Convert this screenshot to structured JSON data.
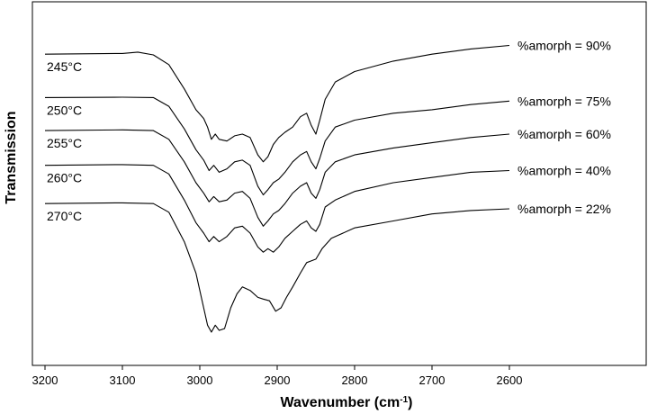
{
  "chart_data": {
    "type": "line",
    "xlabel": "Wavenumber (cm",
    "xlabel_sup": "-1",
    "xlabel_close": ")",
    "ylabel": "Transmission",
    "x_ticks": [
      3200,
      3100,
      3000,
      2900,
      2800,
      2700,
      2600
    ],
    "xlim": [
      3200,
      2600
    ],
    "x_reversed": true,
    "ylim": [
      0,
      1
    ],
    "grid": false,
    "series": [
      {
        "temp_label": "245°C",
        "name": "%amorph = 90%",
        "values": [
          [
            3200,
            0.87
          ],
          [
            3100,
            0.872
          ],
          [
            3080,
            0.876
          ],
          [
            3060,
            0.868
          ],
          [
            3040,
            0.84
          ],
          [
            3020,
            0.77
          ],
          [
            3005,
            0.71
          ],
          [
            2995,
            0.685
          ],
          [
            2990,
            0.66
          ],
          [
            2985,
            0.625
          ],
          [
            2980,
            0.64
          ],
          [
            2975,
            0.625
          ],
          [
            2965,
            0.62
          ],
          [
            2955,
            0.635
          ],
          [
            2945,
            0.64
          ],
          [
            2935,
            0.63
          ],
          [
            2925,
            0.58
          ],
          [
            2918,
            0.56
          ],
          [
            2912,
            0.575
          ],
          [
            2905,
            0.61
          ],
          [
            2898,
            0.63
          ],
          [
            2890,
            0.645
          ],
          [
            2880,
            0.66
          ],
          [
            2870,
            0.69
          ],
          [
            2862,
            0.7
          ],
          [
            2856,
            0.665
          ],
          [
            2850,
            0.64
          ],
          [
            2845,
            0.68
          ],
          [
            2838,
            0.74
          ],
          [
            2825,
            0.79
          ],
          [
            2800,
            0.82
          ],
          [
            2750,
            0.85
          ],
          [
            2700,
            0.87
          ],
          [
            2650,
            0.885
          ],
          [
            2600,
            0.895
          ]
        ]
      },
      {
        "temp_label": "250°C",
        "name": "%amorph = 75%",
        "values": [
          [
            3200,
            0.745
          ],
          [
            3100,
            0.746
          ],
          [
            3060,
            0.745
          ],
          [
            3040,
            0.72
          ],
          [
            3020,
            0.655
          ],
          [
            3005,
            0.595
          ],
          [
            2995,
            0.565
          ],
          [
            2988,
            0.535
          ],
          [
            2982,
            0.55
          ],
          [
            2975,
            0.53
          ],
          [
            2965,
            0.54
          ],
          [
            2955,
            0.56
          ],
          [
            2945,
            0.565
          ],
          [
            2935,
            0.55
          ],
          [
            2925,
            0.49
          ],
          [
            2918,
            0.465
          ],
          [
            2912,
            0.48
          ],
          [
            2905,
            0.5
          ],
          [
            2898,
            0.51
          ],
          [
            2890,
            0.53
          ],
          [
            2880,
            0.56
          ],
          [
            2870,
            0.58
          ],
          [
            2862,
            0.59
          ],
          [
            2856,
            0.56
          ],
          [
            2850,
            0.54
          ],
          [
            2845,
            0.57
          ],
          [
            2838,
            0.62
          ],
          [
            2825,
            0.66
          ],
          [
            2800,
            0.68
          ],
          [
            2750,
            0.7
          ],
          [
            2700,
            0.71
          ],
          [
            2650,
            0.725
          ],
          [
            2600,
            0.735
          ]
        ]
      },
      {
        "temp_label": "255°C",
        "name": "%amorph = 60%",
        "values": [
          [
            3200,
            0.65
          ],
          [
            3100,
            0.652
          ],
          [
            3060,
            0.65
          ],
          [
            3040,
            0.625
          ],
          [
            3020,
            0.56
          ],
          [
            3005,
            0.5
          ],
          [
            2995,
            0.47
          ],
          [
            2988,
            0.445
          ],
          [
            2982,
            0.46
          ],
          [
            2975,
            0.445
          ],
          [
            2965,
            0.45
          ],
          [
            2955,
            0.47
          ],
          [
            2945,
            0.475
          ],
          [
            2935,
            0.455
          ],
          [
            2925,
            0.4
          ],
          [
            2918,
            0.375
          ],
          [
            2912,
            0.39
          ],
          [
            2905,
            0.41
          ],
          [
            2898,
            0.42
          ],
          [
            2890,
            0.44
          ],
          [
            2880,
            0.47
          ],
          [
            2870,
            0.49
          ],
          [
            2862,
            0.5
          ],
          [
            2856,
            0.47
          ],
          [
            2850,
            0.455
          ],
          [
            2845,
            0.48
          ],
          [
            2838,
            0.53
          ],
          [
            2825,
            0.56
          ],
          [
            2800,
            0.58
          ],
          [
            2750,
            0.6
          ],
          [
            2700,
            0.615
          ],
          [
            2650,
            0.63
          ],
          [
            2600,
            0.64
          ]
        ]
      },
      {
        "temp_label": "260°C",
        "name": "%amorph = 40%",
        "values": [
          [
            3200,
            0.55
          ],
          [
            3100,
            0.552
          ],
          [
            3060,
            0.55
          ],
          [
            3040,
            0.525
          ],
          [
            3020,
            0.45
          ],
          [
            3005,
            0.385
          ],
          [
            2995,
            0.355
          ],
          [
            2988,
            0.33
          ],
          [
            2982,
            0.345
          ],
          [
            2975,
            0.33
          ],
          [
            2965,
            0.345
          ],
          [
            2955,
            0.37
          ],
          [
            2945,
            0.375
          ],
          [
            2935,
            0.355
          ],
          [
            2925,
            0.315
          ],
          [
            2918,
            0.3
          ],
          [
            2912,
            0.31
          ],
          [
            2905,
            0.3
          ],
          [
            2898,
            0.315
          ],
          [
            2890,
            0.34
          ],
          [
            2880,
            0.36
          ],
          [
            2870,
            0.38
          ],
          [
            2862,
            0.39
          ],
          [
            2856,
            0.37
          ],
          [
            2850,
            0.36
          ],
          [
            2845,
            0.38
          ],
          [
            2838,
            0.43
          ],
          [
            2825,
            0.45
          ],
          [
            2800,
            0.475
          ],
          [
            2750,
            0.5
          ],
          [
            2700,
            0.515
          ],
          [
            2650,
            0.53
          ],
          [
            2600,
            0.535
          ]
        ]
      },
      {
        "temp_label": "270°C",
        "name": "%amorph = 22%",
        "values": [
          [
            3200,
            0.44
          ],
          [
            3100,
            0.442
          ],
          [
            3060,
            0.44
          ],
          [
            3040,
            0.415
          ],
          [
            3020,
            0.33
          ],
          [
            3005,
            0.24
          ],
          [
            2995,
            0.14
          ],
          [
            2990,
            0.09
          ],
          [
            2985,
            0.07
          ],
          [
            2980,
            0.09
          ],
          [
            2975,
            0.075
          ],
          [
            2968,
            0.08
          ],
          [
            2960,
            0.14
          ],
          [
            2952,
            0.18
          ],
          [
            2945,
            0.2
          ],
          [
            2935,
            0.19
          ],
          [
            2925,
            0.17
          ],
          [
            2918,
            0.165
          ],
          [
            2910,
            0.16
          ],
          [
            2902,
            0.13
          ],
          [
            2895,
            0.14
          ],
          [
            2888,
            0.17
          ],
          [
            2880,
            0.2
          ],
          [
            2870,
            0.24
          ],
          [
            2862,
            0.27
          ],
          [
            2856,
            0.275
          ],
          [
            2850,
            0.28
          ],
          [
            2842,
            0.31
          ],
          [
            2830,
            0.34
          ],
          [
            2800,
            0.37
          ],
          [
            2750,
            0.39
          ],
          [
            2700,
            0.41
          ],
          [
            2650,
            0.42
          ],
          [
            2600,
            0.425
          ]
        ]
      }
    ]
  }
}
